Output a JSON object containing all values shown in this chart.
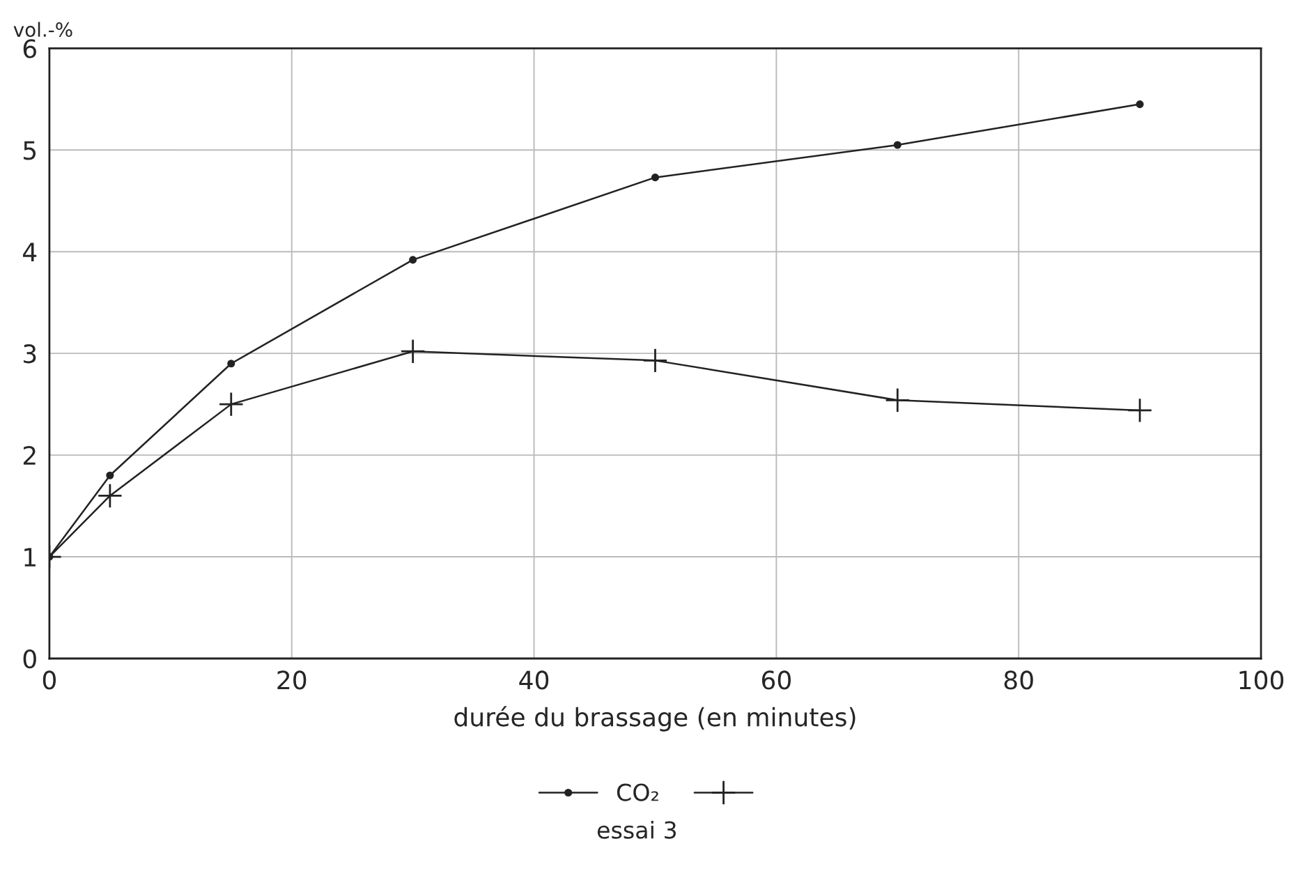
{
  "chart_data": {
    "type": "line",
    "ylabel": "vol.-%",
    "xlabel": "durée du brassage (en minutes)",
    "x": [
      0,
      5,
      15,
      30,
      50,
      70,
      90
    ],
    "series": [
      {
        "name": "CO₂",
        "color": "#222222",
        "marker": "circle",
        "values": [
          1.0,
          1.8,
          2.9,
          3.92,
          4.73,
          5.05,
          5.45
        ]
      },
      {
        "color": "#222222",
        "marker": "cross",
        "values": [
          1.0,
          1.6,
          2.5,
          3.02,
          2.93,
          2.54,
          2.44
        ]
      }
    ],
    "xlim": [
      0,
      100
    ],
    "xticks": [
      0,
      20,
      40,
      60,
      80,
      100
    ],
    "ylim": [
      0,
      6
    ],
    "yticks": [
      0,
      1,
      2,
      3,
      4,
      5,
      6
    ],
    "grid": true,
    "legend": "bottom",
    "line_style": "solid",
    "annotations": [
      "essai 3"
    ]
  }
}
